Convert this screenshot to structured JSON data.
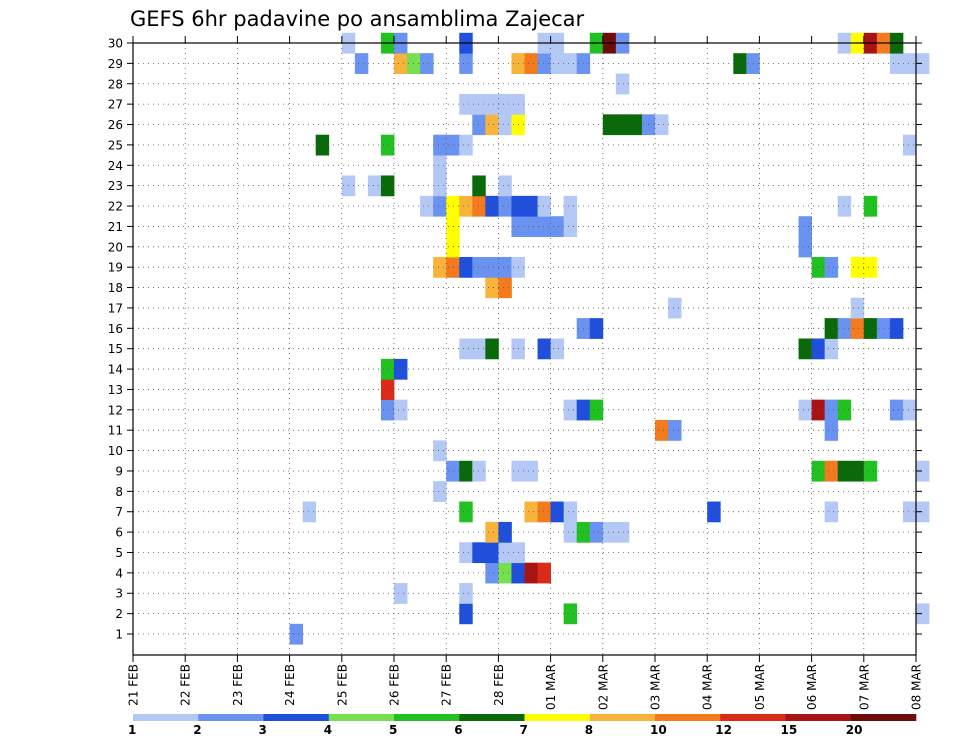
{
  "chart_data": {
    "type": "heatmap",
    "title": "GEFS 6hr padavine po ansamblima Zajecar",
    "y_ticks": [
      "1",
      "2",
      "3",
      "4",
      "5",
      "6",
      "7",
      "8",
      "9",
      "10",
      "11",
      "12",
      "13",
      "14",
      "15",
      "16",
      "17",
      "18",
      "19",
      "20",
      "21",
      "22",
      "23",
      "24",
      "25",
      "26",
      "27",
      "28",
      "29",
      "30"
    ],
    "x_ticks": [
      "21 FEB",
      "22 FEB",
      "23 FEB",
      "24 FEB",
      "25 FEB",
      "26 FEB",
      "27 FEB",
      "28 FEB",
      "01 MAR",
      "02 MAR",
      "03 MAR",
      "04 MAR",
      "05 MAR",
      "06 MAR",
      "07 MAR",
      "08 MAR"
    ],
    "steps_per_day": 4,
    "grid": "dotted",
    "legend": {
      "labels": [
        "1",
        "2",
        "3",
        "4",
        "5",
        "6",
        "7",
        "8",
        "10",
        "12",
        "15",
        "20"
      ],
      "colors": [
        "#b4c8f5",
        "#6a92f0",
        "#1f4fdb",
        "#76e04e",
        "#21c121",
        "#0a6a0a",
        "#ffff00",
        "#f8b43a",
        "#f47a1e",
        "#dc2a18",
        "#a81414",
        "#6e0c0c"
      ]
    },
    "cells": [
      {
        "m": 1,
        "s": [
          [
            12,
            2
          ]
        ]
      },
      {
        "m": 2,
        "s": [
          [
            25,
            3
          ],
          [
            33,
            5
          ],
          [
            60,
            1
          ]
        ]
      },
      {
        "m": 3,
        "s": [
          [
            20,
            1
          ],
          [
            25,
            1
          ]
        ]
      },
      {
        "m": 4,
        "s": [
          [
            27,
            2
          ],
          [
            28,
            4
          ],
          [
            29,
            3
          ],
          [
            30,
            11
          ],
          [
            31,
            10
          ]
        ]
      },
      {
        "m": 5,
        "s": [
          [
            25,
            1
          ],
          [
            26,
            3
          ],
          [
            27,
            3
          ],
          [
            28,
            1
          ],
          [
            29,
            1
          ]
        ]
      },
      {
        "m": 6,
        "s": [
          [
            27,
            8
          ],
          [
            28,
            3
          ],
          [
            33,
            1
          ],
          [
            34,
            5
          ],
          [
            35,
            2
          ],
          [
            36,
            1
          ],
          [
            37,
            1
          ]
        ]
      },
      {
        "m": 7,
        "s": [
          [
            13,
            1
          ],
          [
            25,
            5
          ],
          [
            30,
            8
          ],
          [
            31,
            9
          ],
          [
            32,
            3
          ],
          [
            33,
            1
          ],
          [
            44,
            3
          ],
          [
            53,
            1
          ],
          [
            59,
            1
          ],
          [
            60,
            1
          ]
        ]
      },
      {
        "m": 8,
        "s": [
          [
            23,
            1
          ]
        ]
      },
      {
        "m": 9,
        "s": [
          [
            24,
            2
          ],
          [
            25,
            6
          ],
          [
            26,
            1
          ],
          [
            29,
            1
          ],
          [
            30,
            1
          ],
          [
            52,
            5
          ],
          [
            53,
            9
          ],
          [
            54,
            6
          ],
          [
            55,
            6
          ],
          [
            56,
            5
          ],
          [
            60,
            1
          ]
        ]
      },
      {
        "m": 10,
        "s": [
          [
            23,
            1
          ]
        ]
      },
      {
        "m": 11,
        "s": [
          [
            40,
            9
          ],
          [
            41,
            2
          ],
          [
            53,
            2
          ]
        ]
      },
      {
        "m": 12,
        "s": [
          [
            19,
            2
          ],
          [
            20,
            1
          ],
          [
            33,
            1
          ],
          [
            34,
            3
          ],
          [
            35,
            5
          ],
          [
            51,
            1
          ],
          [
            52,
            11
          ],
          [
            53,
            2
          ],
          [
            54,
            5
          ],
          [
            58,
            2
          ],
          [
            59,
            1
          ]
        ]
      },
      {
        "m": 13,
        "s": [
          [
            19,
            10
          ]
        ]
      },
      {
        "m": 14,
        "s": [
          [
            19,
            5
          ],
          [
            20,
            3
          ]
        ]
      },
      {
        "m": 15,
        "s": [
          [
            25,
            1
          ],
          [
            26,
            1
          ],
          [
            27,
            6
          ],
          [
            29,
            1
          ],
          [
            31,
            3
          ],
          [
            32,
            1
          ],
          [
            51,
            6
          ],
          [
            52,
            3
          ],
          [
            53,
            1
          ]
        ]
      },
      {
        "m": 16,
        "s": [
          [
            34,
            2
          ],
          [
            35,
            3
          ],
          [
            53,
            6
          ],
          [
            54,
            2
          ],
          [
            55,
            9
          ],
          [
            56,
            6
          ],
          [
            57,
            2
          ],
          [
            58,
            3
          ]
        ]
      },
      {
        "m": 17,
        "s": [
          [
            41,
            1
          ],
          [
            55,
            1
          ]
        ]
      },
      {
        "m": 18,
        "s": [
          [
            27,
            8
          ],
          [
            28,
            9
          ]
        ]
      },
      {
        "m": 19,
        "s": [
          [
            23,
            8
          ],
          [
            24,
            9
          ],
          [
            25,
            3
          ],
          [
            26,
            2
          ],
          [
            27,
            2
          ],
          [
            28,
            2
          ],
          [
            29,
            1
          ],
          [
            52,
            5
          ],
          [
            53,
            2
          ],
          [
            55,
            7
          ],
          [
            56,
            7
          ]
        ]
      },
      {
        "m": 20,
        "s": [
          [
            24,
            7
          ],
          [
            51,
            2
          ]
        ]
      },
      {
        "m": 21,
        "s": [
          [
            24,
            7
          ],
          [
            29,
            2
          ],
          [
            30,
            2
          ],
          [
            31,
            2
          ],
          [
            32,
            2
          ],
          [
            33,
            1
          ],
          [
            51,
            2
          ]
        ]
      },
      {
        "m": 22,
        "s": [
          [
            22,
            1
          ],
          [
            23,
            2
          ],
          [
            24,
            7
          ],
          [
            25,
            8
          ],
          [
            26,
            9
          ],
          [
            27,
            3
          ],
          [
            28,
            2
          ],
          [
            29,
            3
          ],
          [
            30,
            3
          ],
          [
            31,
            1
          ],
          [
            33,
            1
          ],
          [
            54,
            1
          ],
          [
            56,
            5
          ]
        ]
      },
      {
        "m": 23,
        "s": [
          [
            16,
            1
          ],
          [
            18,
            1
          ],
          [
            19,
            6
          ],
          [
            23,
            1
          ],
          [
            26,
            6
          ],
          [
            28,
            1
          ]
        ]
      },
      {
        "m": 24,
        "s": [
          [
            23,
            1
          ]
        ]
      },
      {
        "m": 25,
        "s": [
          [
            14,
            6
          ],
          [
            19,
            5
          ],
          [
            23,
            2
          ],
          [
            24,
            2
          ],
          [
            25,
            1
          ],
          [
            59,
            1
          ]
        ]
      },
      {
        "m": 26,
        "s": [
          [
            26,
            2
          ],
          [
            27,
            8
          ],
          [
            28,
            1
          ],
          [
            29,
            7
          ],
          [
            36,
            6
          ],
          [
            37,
            6
          ],
          [
            38,
            6
          ],
          [
            39,
            2
          ],
          [
            40,
            1
          ]
        ]
      },
      {
        "m": 27,
        "s": [
          [
            25,
            1
          ],
          [
            26,
            1
          ],
          [
            27,
            1
          ],
          [
            28,
            1
          ],
          [
            29,
            1
          ]
        ]
      },
      {
        "m": 28,
        "s": [
          [
            37,
            1
          ]
        ]
      },
      {
        "m": 29,
        "s": [
          [
            17,
            2
          ],
          [
            20,
            8
          ],
          [
            21,
            4
          ],
          [
            22,
            2
          ],
          [
            25,
            2
          ],
          [
            29,
            8
          ],
          [
            30,
            9
          ],
          [
            31,
            2
          ],
          [
            32,
            1
          ],
          [
            33,
            1
          ],
          [
            34,
            2
          ],
          [
            46,
            6
          ],
          [
            47,
            2
          ],
          [
            58,
            1
          ],
          [
            59,
            1
          ],
          [
            60,
            1
          ]
        ]
      },
      {
        "m": 30,
        "s": [
          [
            16,
            1
          ],
          [
            19,
            5
          ],
          [
            20,
            2
          ],
          [
            25,
            3
          ],
          [
            31,
            1
          ],
          [
            32,
            1
          ],
          [
            35,
            5
          ],
          [
            36,
            12
          ],
          [
            37,
            2
          ],
          [
            54,
            1
          ],
          [
            55,
            7
          ],
          [
            56,
            11
          ],
          [
            57,
            9
          ],
          [
            58,
            6
          ]
        ]
      }
    ]
  }
}
